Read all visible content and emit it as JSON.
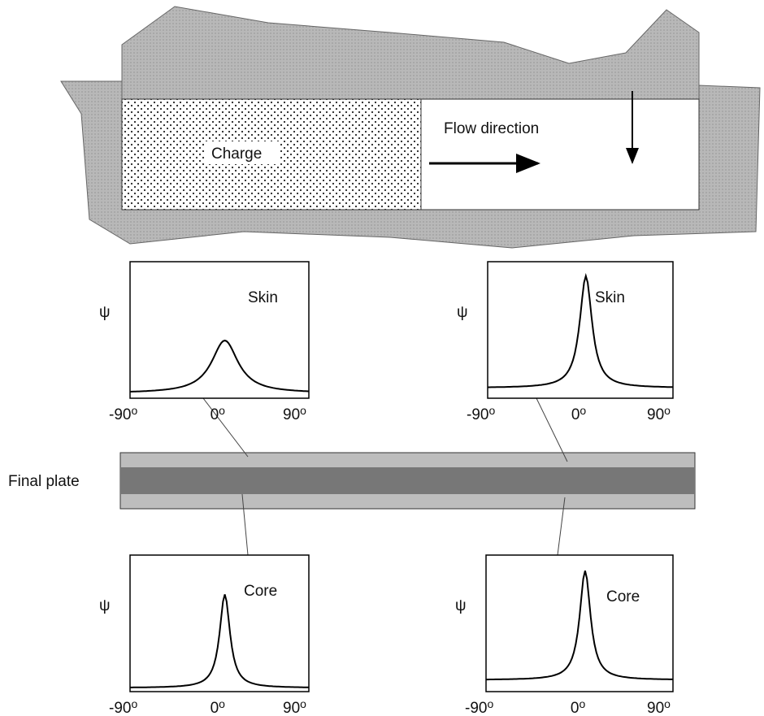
{
  "mold": {
    "charge_label": "Charge",
    "flow_label": "Flow direction"
  },
  "plate": {
    "label": "Final plate"
  },
  "panels": [
    {
      "y_label": "ψ",
      "layer": "Skin",
      "ticks": [
        "-90",
        "0",
        "90"
      ],
      "degree": "o"
    },
    {
      "y_label": "ψ",
      "layer": "Skin",
      "ticks": [
        "-90",
        "0",
        "90"
      ],
      "degree": "o"
    },
    {
      "y_label": "ψ",
      "layer": "Core",
      "ticks": [
        "-90",
        "0",
        "90"
      ],
      "degree": "o"
    },
    {
      "y_label": "ψ",
      "layer": "Core",
      "ticks": [
        "-90",
        "0",
        "90"
      ],
      "degree": "o"
    }
  ]
}
